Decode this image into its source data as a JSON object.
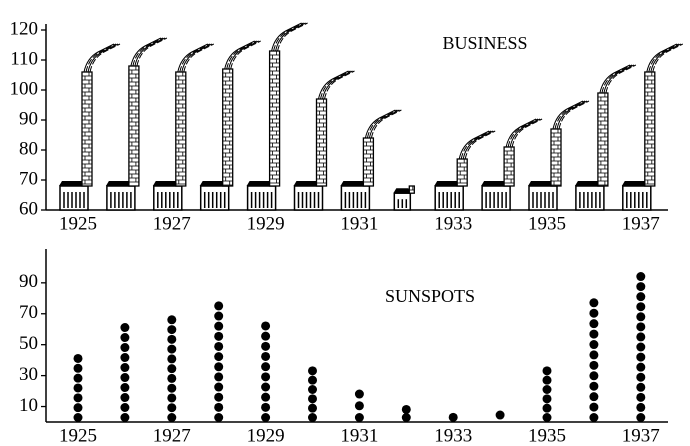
{
  "chart_data": [
    {
      "type": "pictograph",
      "title": "BUSINESS",
      "categories": [
        "1925",
        null,
        "1927",
        null,
        "1929",
        null,
        "1931",
        null,
        "1933",
        null,
        "1935",
        null,
        "1937"
      ],
      "values": [
        106,
        108,
        106,
        107,
        113,
        97,
        84,
        68,
        77,
        81,
        87,
        99,
        106
      ],
      "ylim": [
        60,
        120
      ],
      "yticks": [
        60,
        70,
        80,
        90,
        100,
        110,
        120
      ],
      "color": "#000000"
    },
    {
      "type": "dot",
      "title": "SUNSPOTS",
      "categories": [
        "1925",
        null,
        "1927",
        null,
        "1929",
        null,
        "1931",
        null,
        "1933",
        null,
        "1935",
        null,
        "1937"
      ],
      "values": [
        44,
        64,
        69,
        78,
        65,
        36,
        21,
        11,
        6,
        9,
        36,
        80,
        97
      ],
      "ylim": [
        0,
        108
      ],
      "yticks": [
        10,
        30,
        50,
        70,
        90
      ],
      "color": "#000000"
    }
  ]
}
